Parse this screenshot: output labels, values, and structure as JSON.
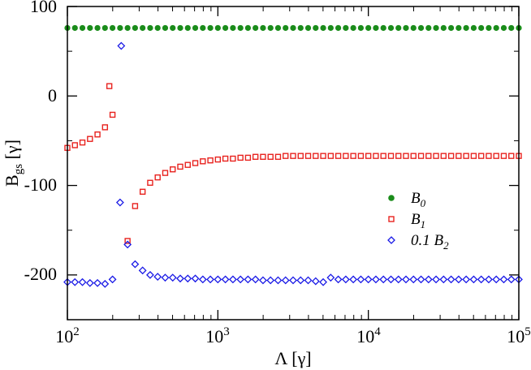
{
  "chart_data": {
    "type": "scatter",
    "title": "",
    "xscale": "log",
    "xlim": [
      100,
      100000
    ],
    "ylim": [
      -250,
      100
    ],
    "xlabel": {
      "main": "Λ [γ]"
    },
    "ylabel": {
      "main": "B",
      "sub": "gs",
      "unit": " [γ]"
    },
    "xticks": [
      {
        "base": "10",
        "exp": "2"
      },
      {
        "base": "10",
        "exp": "3"
      },
      {
        "base": "10",
        "exp": "4"
      },
      {
        "base": "10",
        "exp": "5"
      }
    ],
    "yticks": [
      "100",
      "0",
      "-100",
      "-200"
    ],
    "legend_position": "center-right",
    "series": [
      {
        "key": "B0",
        "legend_main": "B",
        "legend_sub": "0",
        "color": "#1a8c1a",
        "marker": "circle",
        "x": [
          100,
          112.2,
          125.9,
          141.3,
          158.5,
          177.8,
          199.5,
          223.9,
          251.2,
          281.8,
          316.2,
          354.8,
          398.1,
          446.7,
          501.2,
          562.3,
          631,
          707.9,
          794.3,
          891.3,
          1000,
          1122,
          1259,
          1413,
          1585,
          1778,
          1995,
          2239,
          2512,
          2818,
          3162,
          3548,
          3981,
          4467,
          5012,
          5623,
          6310,
          7079,
          7943,
          8913,
          10000,
          11220,
          12590,
          14130,
          15850,
          17780,
          19950,
          22390,
          25120,
          28180,
          31620,
          35480,
          39810,
          44670,
          50120,
          56230,
          63100,
          70790,
          79430,
          89130,
          100000
        ],
        "y": [
          76,
          76,
          76,
          76,
          76,
          76,
          76,
          76,
          76,
          76,
          76,
          76,
          76,
          76,
          76,
          76,
          76,
          76,
          76,
          76,
          76,
          76,
          76,
          76,
          76,
          76,
          76,
          76,
          76,
          76,
          76,
          76,
          76,
          76,
          76,
          76,
          76,
          76,
          76,
          76,
          76,
          76,
          76,
          76,
          76,
          76,
          76,
          76,
          76,
          76,
          76,
          76,
          76,
          76,
          76,
          76,
          76,
          76,
          76,
          76,
          76
        ]
      },
      {
        "key": "B1",
        "legend_main": "B",
        "legend_sub": "1",
        "color": "#e8231f",
        "marker": "square",
        "x": [
          100,
          112.2,
          125.9,
          141.3,
          158.5,
          177.8,
          199.5,
          251.2,
          281.8,
          316.2,
          354.8,
          398.1,
          446.7,
          501.2,
          562.3,
          631,
          707.9,
          794.3,
          891.3,
          1000,
          1122,
          1259,
          1413,
          1585,
          1778,
          1995,
          2239,
          2512,
          2818,
          3162,
          3548,
          3981,
          4467,
          5012,
          5623,
          6310,
          7079,
          7943,
          8913,
          10000,
          11220,
          12590,
          14130,
          15850,
          17780,
          19950,
          22390,
          25120,
          28180,
          31620,
          35480,
          39810,
          44670,
          50120,
          56230,
          63100,
          70790,
          79430,
          89130,
          100000
        ],
        "y": [
          -58,
          -55,
          -52,
          -48,
          -43,
          -35,
          -21,
          -162,
          -123,
          -107,
          -97,
          -91,
          -86,
          -82,
          -79,
          -77,
          -75,
          -73,
          -72,
          -71,
          -70,
          -70,
          -69,
          -69,
          -68,
          -68,
          -68,
          -68,
          -67,
          -67,
          -67,
          -67,
          -67,
          -67,
          -67,
          -67,
          -67,
          -67,
          -67,
          -67,
          -67,
          -67,
          -67,
          -67,
          -67,
          -67,
          -67,
          -67,
          -67,
          -67,
          -67,
          -67,
          -67,
          -67,
          -67,
          -67,
          -67,
          -67,
          -67,
          -67
        ]
      },
      {
        "key": "B2",
        "legend_main": "0.1 B",
        "legend_sub": "2",
        "color": "#1a1ae6",
        "marker": "diamond",
        "x": [
          100,
          112.2,
          125.9,
          141.3,
          158.5,
          177.8,
          199.5,
          223.9,
          251.2,
          281.8,
          316.2,
          354.8,
          398.1,
          446.7,
          501.2,
          562.3,
          631,
          707.9,
          794.3,
          891.3,
          1000,
          1122,
          1259,
          1413,
          1585,
          1778,
          1995,
          2239,
          2512,
          2818,
          3162,
          3548,
          3981,
          4467,
          5012,
          5623,
          6310,
          7079,
          7943,
          8913,
          10000,
          11220,
          12590,
          14130,
          15850,
          17780,
          19950,
          22390,
          25120,
          28180,
          31620,
          35480,
          39810,
          44670,
          50120,
          56230,
          63100,
          70790,
          79430,
          89130,
          100000
        ],
        "y": [
          -208,
          -208,
          -208,
          -209,
          -209,
          -210,
          -205,
          -119,
          -166,
          -188,
          -195,
          -200,
          -202,
          -203,
          -203,
          -204,
          -204,
          -204,
          -205,
          -205,
          -205,
          -205,
          -205,
          -205,
          -205,
          -205,
          -206,
          -206,
          -206,
          -206,
          -206,
          -206,
          -206,
          -207,
          -208,
          -203,
          -205,
          -205,
          -205,
          -205,
          -205,
          -205,
          -205,
          -205,
          -205,
          -205,
          -205,
          -205,
          -205,
          -205,
          -205,
          -205,
          -205,
          -205,
          -205,
          -205,
          -205,
          -205,
          -205,
          -205,
          -205
        ]
      }
    ],
    "outliers": [
      {
        "series": "B1",
        "x": 190,
        "y": 11
      },
      {
        "series": "B2",
        "x": 228,
        "y": 56
      }
    ]
  }
}
